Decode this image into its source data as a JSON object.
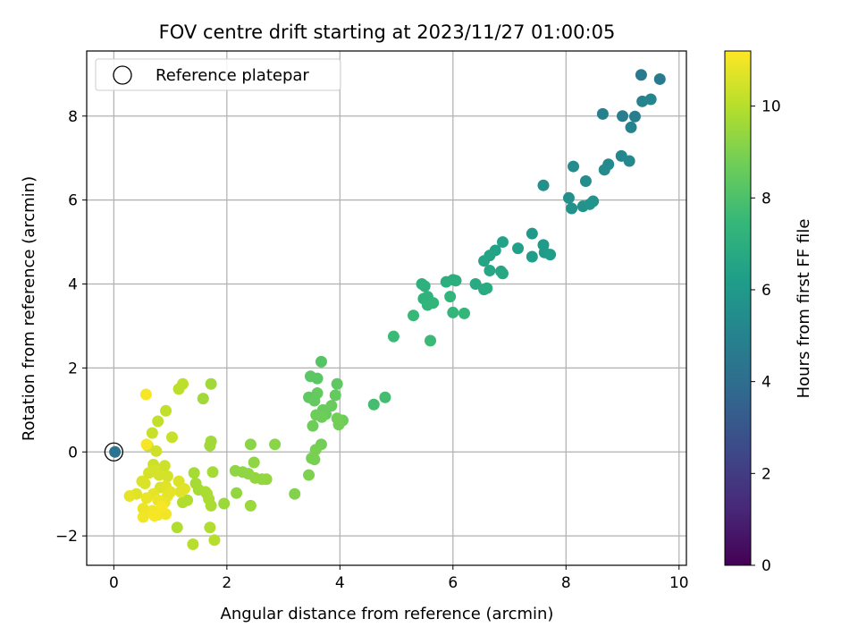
{
  "chart_data": {
    "type": "scatter",
    "title": "FOV centre drift starting at 2023/11/27 01:00:05",
    "xlabel": "Angular distance from reference (arcmin)",
    "ylabel": "Rotation from reference (arcmin)",
    "xlim": [
      -0.48,
      10.13
    ],
    "ylim": [
      -2.7,
      9.55
    ],
    "xticks": [
      0,
      2,
      4,
      6,
      8,
      10
    ],
    "yticks": [
      -2,
      0,
      2,
      4,
      6,
      8
    ],
    "xtick_labels": [
      "0",
      "2",
      "4",
      "6",
      "8",
      "10"
    ],
    "ytick_labels": [
      "−2",
      "0",
      "2",
      "4",
      "6",
      "8"
    ],
    "grid": true,
    "legend": {
      "placement": "top-left",
      "entries": [
        "Reference platepar"
      ]
    },
    "colorbar": {
      "label": "Hours from first FF file",
      "range": [
        0,
        11.2
      ],
      "ticks": [
        0,
        2,
        4,
        6,
        8,
        10
      ],
      "tick_labels": [
        "0",
        "2",
        "4",
        "6",
        "8",
        "10"
      ],
      "colormap": "viridis"
    },
    "reference_point": {
      "x": 0,
      "y": 0
    },
    "points": [
      {
        "x": 0.02,
        "y": 0.0,
        "c": 4.2
      },
      {
        "x": 9.33,
        "y": 8.98,
        "c": 4.6
      },
      {
        "x": 9.66,
        "y": 8.88,
        "c": 4.6
      },
      {
        "x": 8.65,
        "y": 8.05,
        "c": 4.9
      },
      {
        "x": 9.0,
        "y": 8.0,
        "c": 4.8
      },
      {
        "x": 9.22,
        "y": 7.99,
        "c": 4.8
      },
      {
        "x": 9.35,
        "y": 8.35,
        "c": 5.0
      },
      {
        "x": 9.5,
        "y": 8.4,
        "c": 5.1
      },
      {
        "x": 9.15,
        "y": 7.73,
        "c": 5.0
      },
      {
        "x": 8.98,
        "y": 7.05,
        "c": 5.2
      },
      {
        "x": 9.12,
        "y": 6.93,
        "c": 5.3
      },
      {
        "x": 8.75,
        "y": 6.85,
        "c": 5.3
      },
      {
        "x": 8.68,
        "y": 6.72,
        "c": 5.4
      },
      {
        "x": 8.13,
        "y": 6.8,
        "c": 5.4
      },
      {
        "x": 8.35,
        "y": 6.45,
        "c": 5.5
      },
      {
        "x": 7.6,
        "y": 6.35,
        "c": 5.6
      },
      {
        "x": 8.05,
        "y": 6.05,
        "c": 5.6
      },
      {
        "x": 8.1,
        "y": 5.8,
        "c": 5.7
      },
      {
        "x": 8.3,
        "y": 5.85,
        "c": 5.7
      },
      {
        "x": 8.42,
        "y": 5.9,
        "c": 5.8
      },
      {
        "x": 8.48,
        "y": 5.97,
        "c": 5.8
      },
      {
        "x": 7.4,
        "y": 5.2,
        "c": 6.0
      },
      {
        "x": 7.6,
        "y": 4.93,
        "c": 6.1
      },
      {
        "x": 7.62,
        "y": 4.75,
        "c": 6.1
      },
      {
        "x": 7.72,
        "y": 4.7,
        "c": 6.2
      },
      {
        "x": 7.4,
        "y": 4.65,
        "c": 6.2
      },
      {
        "x": 7.15,
        "y": 4.85,
        "c": 6.3
      },
      {
        "x": 6.88,
        "y": 5.0,
        "c": 6.4
      },
      {
        "x": 6.75,
        "y": 4.8,
        "c": 6.4
      },
      {
        "x": 6.65,
        "y": 4.68,
        "c": 6.5
      },
      {
        "x": 6.55,
        "y": 4.55,
        "c": 6.5
      },
      {
        "x": 6.65,
        "y": 4.32,
        "c": 6.6
      },
      {
        "x": 6.85,
        "y": 4.3,
        "c": 6.6
      },
      {
        "x": 6.88,
        "y": 4.25,
        "c": 6.7
      },
      {
        "x": 6.4,
        "y": 4.0,
        "c": 6.8
      },
      {
        "x": 6.55,
        "y": 3.87,
        "c": 6.8
      },
      {
        "x": 6.6,
        "y": 3.9,
        "c": 6.9
      },
      {
        "x": 5.88,
        "y": 4.05,
        "c": 7.0
      },
      {
        "x": 6.0,
        "y": 4.1,
        "c": 7.0
      },
      {
        "x": 6.05,
        "y": 4.08,
        "c": 7.0
      },
      {
        "x": 5.45,
        "y": 4.0,
        "c": 7.1
      },
      {
        "x": 5.5,
        "y": 3.95,
        "c": 7.1
      },
      {
        "x": 5.55,
        "y": 3.7,
        "c": 7.2
      },
      {
        "x": 5.48,
        "y": 3.65,
        "c": 7.2
      },
      {
        "x": 5.65,
        "y": 3.55,
        "c": 7.3
      },
      {
        "x": 5.55,
        "y": 3.5,
        "c": 7.3
      },
      {
        "x": 5.95,
        "y": 3.7,
        "c": 7.3
      },
      {
        "x": 6.0,
        "y": 3.32,
        "c": 7.4
      },
      {
        "x": 6.2,
        "y": 3.3,
        "c": 7.4
      },
      {
        "x": 5.3,
        "y": 3.25,
        "c": 7.5
      },
      {
        "x": 4.95,
        "y": 2.75,
        "c": 7.6
      },
      {
        "x": 5.6,
        "y": 2.65,
        "c": 7.6
      },
      {
        "x": 4.8,
        "y": 1.3,
        "c": 7.8
      },
      {
        "x": 4.6,
        "y": 1.13,
        "c": 7.8
      },
      {
        "x": 3.67,
        "y": 2.15,
        "c": 8.2
      },
      {
        "x": 3.48,
        "y": 1.8,
        "c": 8.3
      },
      {
        "x": 3.6,
        "y": 1.75,
        "c": 8.3
      },
      {
        "x": 3.95,
        "y": 1.62,
        "c": 8.4
      },
      {
        "x": 3.45,
        "y": 1.3,
        "c": 8.4
      },
      {
        "x": 3.6,
        "y": 1.4,
        "c": 8.5
      },
      {
        "x": 3.92,
        "y": 1.35,
        "c": 8.5
      },
      {
        "x": 3.55,
        "y": 1.22,
        "c": 8.5
      },
      {
        "x": 3.85,
        "y": 1.1,
        "c": 8.6
      },
      {
        "x": 3.7,
        "y": 1.0,
        "c": 8.6
      },
      {
        "x": 3.75,
        "y": 0.9,
        "c": 8.6
      },
      {
        "x": 3.58,
        "y": 0.88,
        "c": 8.7
      },
      {
        "x": 3.68,
        "y": 0.83,
        "c": 8.7
      },
      {
        "x": 3.52,
        "y": 0.62,
        "c": 8.7
      },
      {
        "x": 4.05,
        "y": 0.75,
        "c": 8.7
      },
      {
        "x": 3.95,
        "y": 0.8,
        "c": 8.8
      },
      {
        "x": 3.98,
        "y": 0.65,
        "c": 8.8
      },
      {
        "x": 3.67,
        "y": 0.18,
        "c": 8.8
      },
      {
        "x": 3.57,
        "y": 0.05,
        "c": 8.9
      },
      {
        "x": 3.5,
        "y": -0.15,
        "c": 8.9
      },
      {
        "x": 3.55,
        "y": -0.18,
        "c": 8.9
      },
      {
        "x": 3.45,
        "y": -0.55,
        "c": 9.0
      },
      {
        "x": 3.2,
        "y": -1.0,
        "c": 9.1
      },
      {
        "x": 2.85,
        "y": 0.18,
        "c": 9.2
      },
      {
        "x": 2.42,
        "y": 0.18,
        "c": 9.2
      },
      {
        "x": 2.48,
        "y": -0.25,
        "c": 9.3
      },
      {
        "x": 2.15,
        "y": -0.45,
        "c": 9.3
      },
      {
        "x": 2.28,
        "y": -0.48,
        "c": 9.3
      },
      {
        "x": 2.38,
        "y": -0.52,
        "c": 9.3
      },
      {
        "x": 2.5,
        "y": -0.62,
        "c": 9.4
      },
      {
        "x": 2.62,
        "y": -0.65,
        "c": 9.4
      },
      {
        "x": 2.7,
        "y": -0.65,
        "c": 9.4
      },
      {
        "x": 2.17,
        "y": -0.98,
        "c": 9.4
      },
      {
        "x": 2.42,
        "y": -1.28,
        "c": 9.5
      },
      {
        "x": 1.95,
        "y": -1.23,
        "c": 9.5
      },
      {
        "x": 1.72,
        "y": 1.62,
        "c": 9.6
      },
      {
        "x": 1.58,
        "y": 1.27,
        "c": 9.6
      },
      {
        "x": 1.72,
        "y": 0.25,
        "c": 9.6
      },
      {
        "x": 1.7,
        "y": 0.15,
        "c": 9.6
      },
      {
        "x": 1.75,
        "y": -0.48,
        "c": 9.7
      },
      {
        "x": 1.45,
        "y": -0.75,
        "c": 9.7
      },
      {
        "x": 1.42,
        "y": -0.5,
        "c": 9.7
      },
      {
        "x": 1.5,
        "y": -0.9,
        "c": 9.7
      },
      {
        "x": 1.65,
        "y": -1.0,
        "c": 9.8
      },
      {
        "x": 1.68,
        "y": -1.12,
        "c": 9.8
      },
      {
        "x": 1.62,
        "y": -0.95,
        "c": 9.8
      },
      {
        "x": 1.72,
        "y": -1.28,
        "c": 9.8
      },
      {
        "x": 1.3,
        "y": -1.15,
        "c": 9.9
      },
      {
        "x": 1.22,
        "y": -1.2,
        "c": 9.9
      },
      {
        "x": 1.7,
        "y": -1.8,
        "c": 9.9
      },
      {
        "x": 1.12,
        "y": -1.8,
        "c": 9.9
      },
      {
        "x": 1.78,
        "y": -2.1,
        "c": 10.0
      },
      {
        "x": 1.4,
        "y": -2.2,
        "c": 10.0
      },
      {
        "x": 1.22,
        "y": 1.62,
        "c": 10.1
      },
      {
        "x": 1.15,
        "y": 1.5,
        "c": 10.1
      },
      {
        "x": 0.92,
        "y": 0.98,
        "c": 10.2
      },
      {
        "x": 0.78,
        "y": 0.73,
        "c": 10.2
      },
      {
        "x": 1.03,
        "y": 0.35,
        "c": 10.3
      },
      {
        "x": 0.68,
        "y": 0.45,
        "c": 10.3
      },
      {
        "x": 0.6,
        "y": 0.15,
        "c": 10.3
      },
      {
        "x": 0.75,
        "y": 0.02,
        "c": 10.4
      },
      {
        "x": 0.7,
        "y": -0.3,
        "c": 10.4
      },
      {
        "x": 0.9,
        "y": -0.33,
        "c": 10.4
      },
      {
        "x": 0.72,
        "y": -0.45,
        "c": 10.5
      },
      {
        "x": 0.62,
        "y": -0.5,
        "c": 10.5
      },
      {
        "x": 0.8,
        "y": -0.55,
        "c": 10.5
      },
      {
        "x": 0.95,
        "y": -0.58,
        "c": 10.5
      },
      {
        "x": 1.15,
        "y": -0.7,
        "c": 10.6
      },
      {
        "x": 0.55,
        "y": -0.75,
        "c": 10.6
      },
      {
        "x": 0.5,
        "y": -0.7,
        "c": 10.6
      },
      {
        "x": 0.82,
        "y": -0.85,
        "c": 10.6
      },
      {
        "x": 0.92,
        "y": -0.82,
        "c": 10.7
      },
      {
        "x": 1.25,
        "y": -0.88,
        "c": 10.7
      },
      {
        "x": 1.18,
        "y": -0.95,
        "c": 10.7
      },
      {
        "x": 0.4,
        "y": -1.0,
        "c": 10.7
      },
      {
        "x": 0.28,
        "y": -1.05,
        "c": 10.8
      },
      {
        "x": 0.7,
        "y": -1.0,
        "c": 10.8
      },
      {
        "x": 0.95,
        "y": -1.05,
        "c": 10.8
      },
      {
        "x": 1.0,
        "y": -0.95,
        "c": 10.8
      },
      {
        "x": 0.58,
        "y": -1.1,
        "c": 10.9
      },
      {
        "x": 0.78,
        "y": -1.15,
        "c": 10.9
      },
      {
        "x": 0.9,
        "y": -1.2,
        "c": 10.9
      },
      {
        "x": 0.52,
        "y": -1.35,
        "c": 10.9
      },
      {
        "x": 0.68,
        "y": -1.4,
        "c": 11.0
      },
      {
        "x": 0.78,
        "y": -1.5,
        "c": 11.0
      },
      {
        "x": 0.92,
        "y": -1.48,
        "c": 11.0
      },
      {
        "x": 0.52,
        "y": -1.55,
        "c": 11.0
      },
      {
        "x": 0.72,
        "y": -1.52,
        "c": 11.1
      },
      {
        "x": 0.57,
        "y": 1.37,
        "c": 11.1
      },
      {
        "x": 0.58,
        "y": 0.18,
        "c": 11.1
      },
      {
        "x": 0.85,
        "y": -1.3,
        "c": 11.1
      }
    ]
  }
}
